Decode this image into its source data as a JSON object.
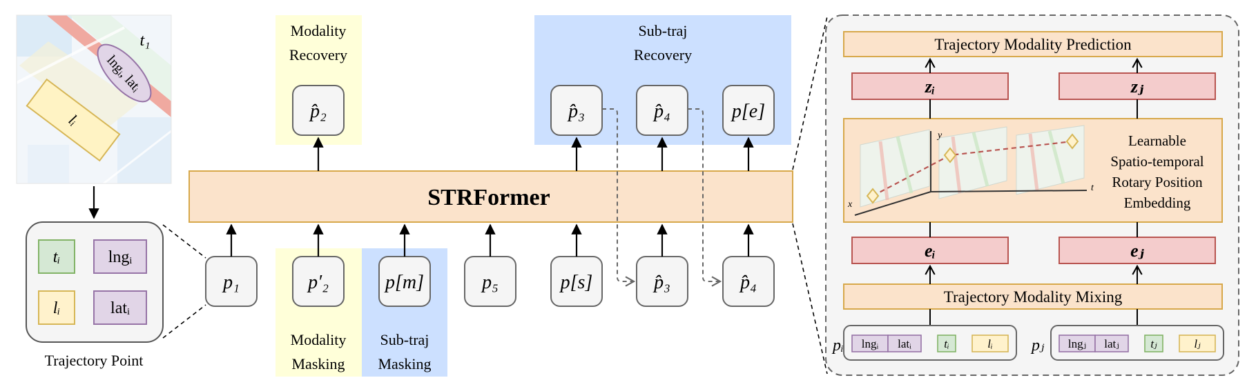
{
  "map": {
    "time": "t₁",
    "lnglat_label": "lngᵢ, latᵢ",
    "location_label": "lᵢ"
  },
  "trajectory_point": {
    "caption": "Trajectory Point",
    "fields": [
      "tᵢ",
      "lngᵢ",
      "lᵢ",
      "latᵢ"
    ]
  },
  "main": {
    "encoder_label": "STRFormer",
    "top_tasks": [
      {
        "label_line1": "Modality",
        "label_line2": "Recovery"
      },
      {
        "label_line1": "Sub-traj",
        "label_line2": "Recovery"
      }
    ],
    "bottom_tasks": [
      {
        "label_line1": "Modality",
        "label_line2": "Masking"
      },
      {
        "label_line1": "Sub-traj",
        "label_line2": "Masking"
      }
    ],
    "input_tokens": [
      "p₁",
      "p′₂",
      "p[m]",
      "p₅",
      "p[s]",
      "p̂₃",
      "p̂₄"
    ],
    "output_tokens": [
      "p̂₂",
      "p̂₃",
      "p̂₄",
      "p[e]"
    ]
  },
  "detail": {
    "prediction_label": "Trajectory Modality Prediction",
    "mixing_label": "Trajectory Modality Mixing",
    "z_labels": [
      "zᵢ",
      "zⱼ"
    ],
    "e_labels": [
      "eᵢ",
      "eⱼ"
    ],
    "rope_lines": [
      "Learnable",
      "Spatio-temporal",
      "Rotary Position",
      "Embedding"
    ],
    "axes": {
      "x": "x",
      "y": "y",
      "t": "t"
    },
    "point_i": {
      "name": "pᵢ",
      "fields": [
        "lngᵢ",
        "latᵢ",
        "tᵢ",
        "lᵢ"
      ]
    },
    "point_j": {
      "name": "pⱼ",
      "fields": [
        "lngⱼ",
        "latⱼ",
        "tⱼ",
        "lⱼ"
      ]
    }
  },
  "colors": {
    "yellow_bg": "#FFFFD9",
    "blue_bg": "#CCE0FF",
    "orange_fill": "#FBE3CB",
    "orange_stroke": "#D7A84A",
    "red_fill": "#F4CCCC",
    "red_stroke": "#B85450",
    "green_fill": "#D5E8D4",
    "green_stroke": "#82B366",
    "purple_fill": "#E1D5E7",
    "purple_stroke": "#9673A6",
    "token_fill": "#F5F5F5",
    "token_stroke": "#666666"
  }
}
